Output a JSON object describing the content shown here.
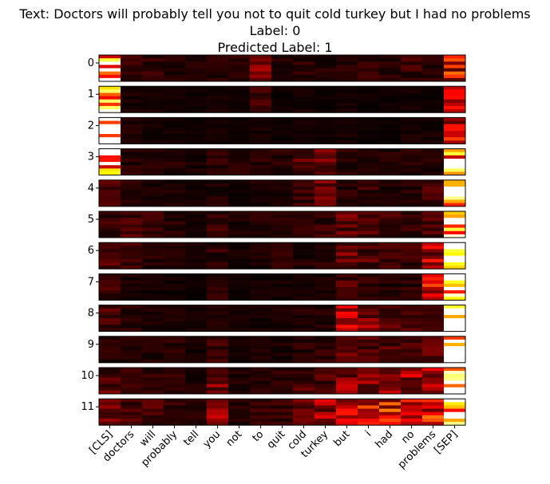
{
  "chart_data": {
    "type": "heatmap",
    "title_lines": [
      "Text: Doctors will probably tell you not to quit cold turkey but I had no problems",
      "Label: 0",
      "Predicted Label: 1"
    ],
    "colormap": "hot",
    "tokens": [
      "[CLS]",
      "doctors",
      "will",
      "probably",
      "tell",
      "you",
      "not",
      "to",
      "quit",
      "cold",
      "turkey",
      "but",
      "i",
      "had",
      "no",
      "problems",
      "[SEP]"
    ],
    "layers": [
      "0",
      "1",
      "2",
      "3",
      "4",
      "5",
      "6",
      "7",
      "8",
      "9",
      "10",
      "11"
    ],
    "mean_attention": [
      [
        0.85,
        0.08,
        0.07,
        0.06,
        0.05,
        0.06,
        0.06,
        0.22,
        0.05,
        0.06,
        0.05,
        0.08,
        0.07,
        0.06,
        0.08,
        0.06,
        0.35
      ],
      [
        0.92,
        0.04,
        0.03,
        0.03,
        0.02,
        0.03,
        0.02,
        0.08,
        0.02,
        0.03,
        0.02,
        0.03,
        0.02,
        0.02,
        0.03,
        0.02,
        0.25
      ],
      [
        0.95,
        0.05,
        0.03,
        0.03,
        0.02,
        0.03,
        0.02,
        0.03,
        0.02,
        0.03,
        0.02,
        0.03,
        0.02,
        0.02,
        0.03,
        0.03,
        0.3
      ],
      [
        0.8,
        0.06,
        0.05,
        0.05,
        0.04,
        0.06,
        0.05,
        0.06,
        0.06,
        0.12,
        0.14,
        0.06,
        0.05,
        0.05,
        0.05,
        0.05,
        0.75
      ],
      [
        0.1,
        0.06,
        0.04,
        0.04,
        0.03,
        0.05,
        0.03,
        0.04,
        0.04,
        0.08,
        0.15,
        0.06,
        0.08,
        0.05,
        0.05,
        0.1,
        0.97
      ],
      [
        0.08,
        0.1,
        0.08,
        0.06,
        0.04,
        0.08,
        0.04,
        0.05,
        0.05,
        0.07,
        0.08,
        0.14,
        0.1,
        0.08,
        0.07,
        0.1,
        0.95
      ],
      [
        0.1,
        0.08,
        0.05,
        0.06,
        0.03,
        0.07,
        0.03,
        0.04,
        0.06,
        0.05,
        0.06,
        0.2,
        0.12,
        0.08,
        0.08,
        0.25,
        0.9
      ],
      [
        0.08,
        0.04,
        0.03,
        0.03,
        0.02,
        0.06,
        0.02,
        0.03,
        0.03,
        0.04,
        0.04,
        0.1,
        0.06,
        0.05,
        0.06,
        0.3,
        0.96
      ],
      [
        0.1,
        0.06,
        0.04,
        0.04,
        0.03,
        0.04,
        0.03,
        0.03,
        0.04,
        0.05,
        0.05,
        0.25,
        0.2,
        0.12,
        0.1,
        0.08,
        0.92
      ],
      [
        0.06,
        0.05,
        0.05,
        0.06,
        0.03,
        0.08,
        0.03,
        0.04,
        0.04,
        0.06,
        0.07,
        0.12,
        0.12,
        0.1,
        0.12,
        0.12,
        0.93
      ],
      [
        0.12,
        0.08,
        0.07,
        0.07,
        0.04,
        0.18,
        0.05,
        0.05,
        0.06,
        0.1,
        0.1,
        0.2,
        0.18,
        0.25,
        0.22,
        0.25,
        0.92
      ],
      [
        0.14,
        0.1,
        0.1,
        0.07,
        0.05,
        0.22,
        0.05,
        0.08,
        0.08,
        0.18,
        0.22,
        0.28,
        0.35,
        0.4,
        0.3,
        0.35,
        0.88
      ]
    ]
  }
}
